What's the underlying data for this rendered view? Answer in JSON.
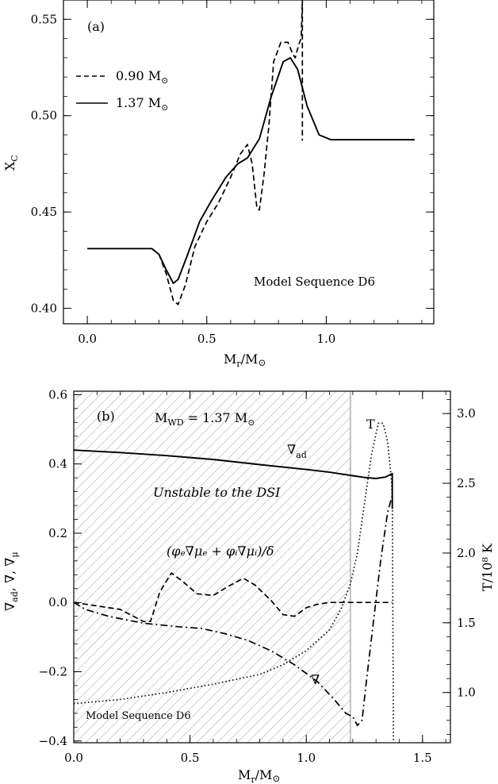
{
  "chart_data": [
    {
      "type": "line",
      "panel_label": "(a)",
      "annotation": "Model Sequence D6",
      "xlabel": {
        "main": "M",
        "sub": "r",
        "tail": "/M",
        "sym": "⊙"
      },
      "ylabel": {
        "main": "X",
        "sub": "C"
      },
      "xlim": [
        -0.1,
        1.45
      ],
      "ylim": [
        0.392,
        0.56
      ],
      "xticks": [
        0.0,
        0.5,
        1.0
      ],
      "xtick_labels": [
        "0.0",
        "0.5",
        "1.0"
      ],
      "yticks": [
        0.4,
        0.45,
        0.5,
        0.55
      ],
      "ytick_labels": [
        "0.40",
        "0.45",
        "0.50",
        "0.55"
      ],
      "legend": [
        {
          "text": "0.90 M",
          "sym": "⊙",
          "style": "dashed"
        },
        {
          "text": "1.37 M",
          "sym": "⊙",
          "style": "solid"
        }
      ],
      "series": [
        {
          "name": "0.90 M⊙",
          "style": "dashed",
          "points": [
            [
              0.27,
              0.431
            ],
            [
              0.3,
              0.428
            ],
            [
              0.33,
              0.418
            ],
            [
              0.36,
              0.404
            ],
            [
              0.38,
              0.402
            ],
            [
              0.41,
              0.412
            ],
            [
              0.45,
              0.432
            ],
            [
              0.5,
              0.445
            ],
            [
              0.55,
              0.455
            ],
            [
              0.6,
              0.468
            ],
            [
              0.64,
              0.48
            ],
            [
              0.67,
              0.485
            ],
            [
              0.69,
              0.475
            ],
            [
              0.71,
              0.452
            ],
            [
              0.72,
              0.451
            ],
            [
              0.74,
              0.47
            ],
            [
              0.76,
              0.495
            ],
            [
              0.78,
              0.528
            ],
            [
              0.81,
              0.538
            ],
            [
              0.84,
              0.538
            ],
            [
              0.86,
              0.532
            ],
            [
              0.87,
              0.53
            ],
            [
              0.885,
              0.537
            ],
            [
              0.895,
              0.54
            ],
            [
              0.9,
              0.56
            ],
            [
              0.9,
              0.487
            ]
          ]
        },
        {
          "name": "1.37 M⊙",
          "style": "solid",
          "points": [
            [
              0.0,
              0.431
            ],
            [
              0.1,
              0.431
            ],
            [
              0.2,
              0.431
            ],
            [
              0.27,
              0.431
            ],
            [
              0.3,
              0.428
            ],
            [
              0.33,
              0.42
            ],
            [
              0.36,
              0.413
            ],
            [
              0.38,
              0.415
            ],
            [
              0.42,
              0.428
            ],
            [
              0.47,
              0.445
            ],
            [
              0.52,
              0.456
            ],
            [
              0.58,
              0.468
            ],
            [
              0.63,
              0.475
            ],
            [
              0.67,
              0.478
            ],
            [
              0.72,
              0.488
            ],
            [
              0.77,
              0.51
            ],
            [
              0.82,
              0.528
            ],
            [
              0.85,
              0.53
            ],
            [
              0.88,
              0.524
            ],
            [
              0.92,
              0.505
            ],
            [
              0.97,
              0.49
            ],
            [
              1.02,
              0.4875
            ],
            [
              1.1,
              0.4875
            ],
            [
              1.2,
              0.4875
            ],
            [
              1.3,
              0.4875
            ],
            [
              1.37,
              0.4875
            ]
          ]
        }
      ]
    },
    {
      "type": "line",
      "panel_label": "(b)",
      "title_parts": {
        "a": "M",
        "sub": "WD",
        "b": " = 1.37 M",
        "sym": "⊙"
      },
      "annotation": "Model Sequence D6",
      "region_label": "Unstable to the DSI",
      "unstable_region_x": [
        0.0,
        1.19
      ],
      "xlabel": {
        "main": "M",
        "sub": "r",
        "tail": "/M",
        "sym": "⊙"
      },
      "ylabel": {
        "a": "∇",
        "asub": "ad",
        "b": ",  ∇,  ∇",
        "bsub": "μ"
      },
      "y2label": "T/10⁸ K",
      "xlim": [
        0.0,
        1.62
      ],
      "ylim": [
        -0.405,
        0.61
      ],
      "y2lim": [
        0.64,
        3.16
      ],
      "xticks": [
        0.0,
        0.5,
        1.0,
        1.5
      ],
      "xtick_labels": [
        "0.0",
        "0.5",
        "1.0",
        "1.5"
      ],
      "yticks": [
        -0.4,
        -0.2,
        0.0,
        0.2,
        0.4,
        0.6
      ],
      "ytick_labels": [
        "−0.4",
        "−0.2",
        "0.0",
        "0.2",
        "0.4",
        "0.6"
      ],
      "y2ticks": [
        1.0,
        1.5,
        2.0,
        2.5,
        3.0
      ],
      "y2tick_labels": [
        "1.0",
        "1.5",
        "2.0",
        "2.5",
        "3.0"
      ],
      "curve_labels": {
        "nabla_ad": {
          "sym": "∇",
          "sub": "ad"
        },
        "nabla": "∇",
        "T": "T",
        "mu_expr": "(φₑ∇μₑ + φᵢ∇μᵢ)/δ"
      },
      "series": [
        {
          "name": "∇ad",
          "style": "solid",
          "axis": "left",
          "points": [
            [
              0.0,
              0.44
            ],
            [
              0.2,
              0.433
            ],
            [
              0.4,
              0.424
            ],
            [
              0.6,
              0.413
            ],
            [
              0.8,
              0.398
            ],
            [
              1.0,
              0.384
            ],
            [
              1.1,
              0.376
            ],
            [
              1.2,
              0.366
            ],
            [
              1.25,
              0.361
            ],
            [
              1.3,
              0.358
            ],
            [
              1.34,
              0.362
            ],
            [
              1.37,
              0.372
            ],
            [
              1.37,
              0.27
            ]
          ]
        },
        {
          "name": "(φₑ∇μₑ + φᵢ∇μᵢ)/δ",
          "style": "dashed",
          "axis": "left",
          "points": [
            [
              0.0,
              0.0
            ],
            [
              0.1,
              -0.01
            ],
            [
              0.2,
              -0.02
            ],
            [
              0.3,
              -0.055
            ],
            [
              0.33,
              -0.055
            ],
            [
              0.37,
              0.03
            ],
            [
              0.42,
              0.085
            ],
            [
              0.47,
              0.06
            ],
            [
              0.53,
              0.025
            ],
            [
              0.6,
              0.02
            ],
            [
              0.66,
              0.045
            ],
            [
              0.73,
              0.07
            ],
            [
              0.78,
              0.05
            ],
            [
              0.85,
              0.005
            ],
            [
              0.9,
              -0.035
            ],
            [
              0.95,
              -0.04
            ],
            [
              1.0,
              -0.015
            ],
            [
              1.05,
              -0.005
            ],
            [
              1.1,
              0.0
            ],
            [
              1.2,
              0.0
            ],
            [
              1.3,
              0.0
            ],
            [
              1.37,
              0.0
            ]
          ]
        },
        {
          "name": "∇",
          "style": "dashdot",
          "axis": "left",
          "points": [
            [
              0.0,
              0.0
            ],
            [
              0.05,
              -0.02
            ],
            [
              0.15,
              -0.04
            ],
            [
              0.3,
              -0.06
            ],
            [
              0.45,
              -0.07
            ],
            [
              0.55,
              -0.075
            ],
            [
              0.65,
              -0.09
            ],
            [
              0.75,
              -0.11
            ],
            [
              0.85,
              -0.14
            ],
            [
              0.95,
              -0.18
            ],
            [
              1.05,
              -0.23
            ],
            [
              1.12,
              -0.28
            ],
            [
              1.17,
              -0.32
            ],
            [
              1.2,
              -0.33
            ],
            [
              1.22,
              -0.355
            ],
            [
              1.24,
              -0.34
            ],
            [
              1.26,
              -0.22
            ],
            [
              1.29,
              -0.05
            ],
            [
              1.32,
              0.12
            ],
            [
              1.35,
              0.26
            ],
            [
              1.37,
              0.31
            ]
          ]
        },
        {
          "name": "T",
          "style": "dotted",
          "axis": "right",
          "points": [
            [
              0.0,
              0.92
            ],
            [
              0.2,
              0.95
            ],
            [
              0.4,
              1.0
            ],
            [
              0.6,
              1.06
            ],
            [
              0.8,
              1.13
            ],
            [
              0.9,
              1.2
            ],
            [
              1.0,
              1.3
            ],
            [
              1.1,
              1.45
            ],
            [
              1.15,
              1.6
            ],
            [
              1.19,
              1.78
            ],
            [
              1.22,
              2.0
            ],
            [
              1.25,
              2.35
            ],
            [
              1.28,
              2.7
            ],
            [
              1.31,
              2.93
            ],
            [
              1.33,
              2.93
            ],
            [
              1.35,
              2.8
            ],
            [
              1.365,
              2.55
            ],
            [
              1.37,
              2.4
            ],
            [
              1.375,
              0.64
            ]
          ]
        }
      ]
    }
  ]
}
